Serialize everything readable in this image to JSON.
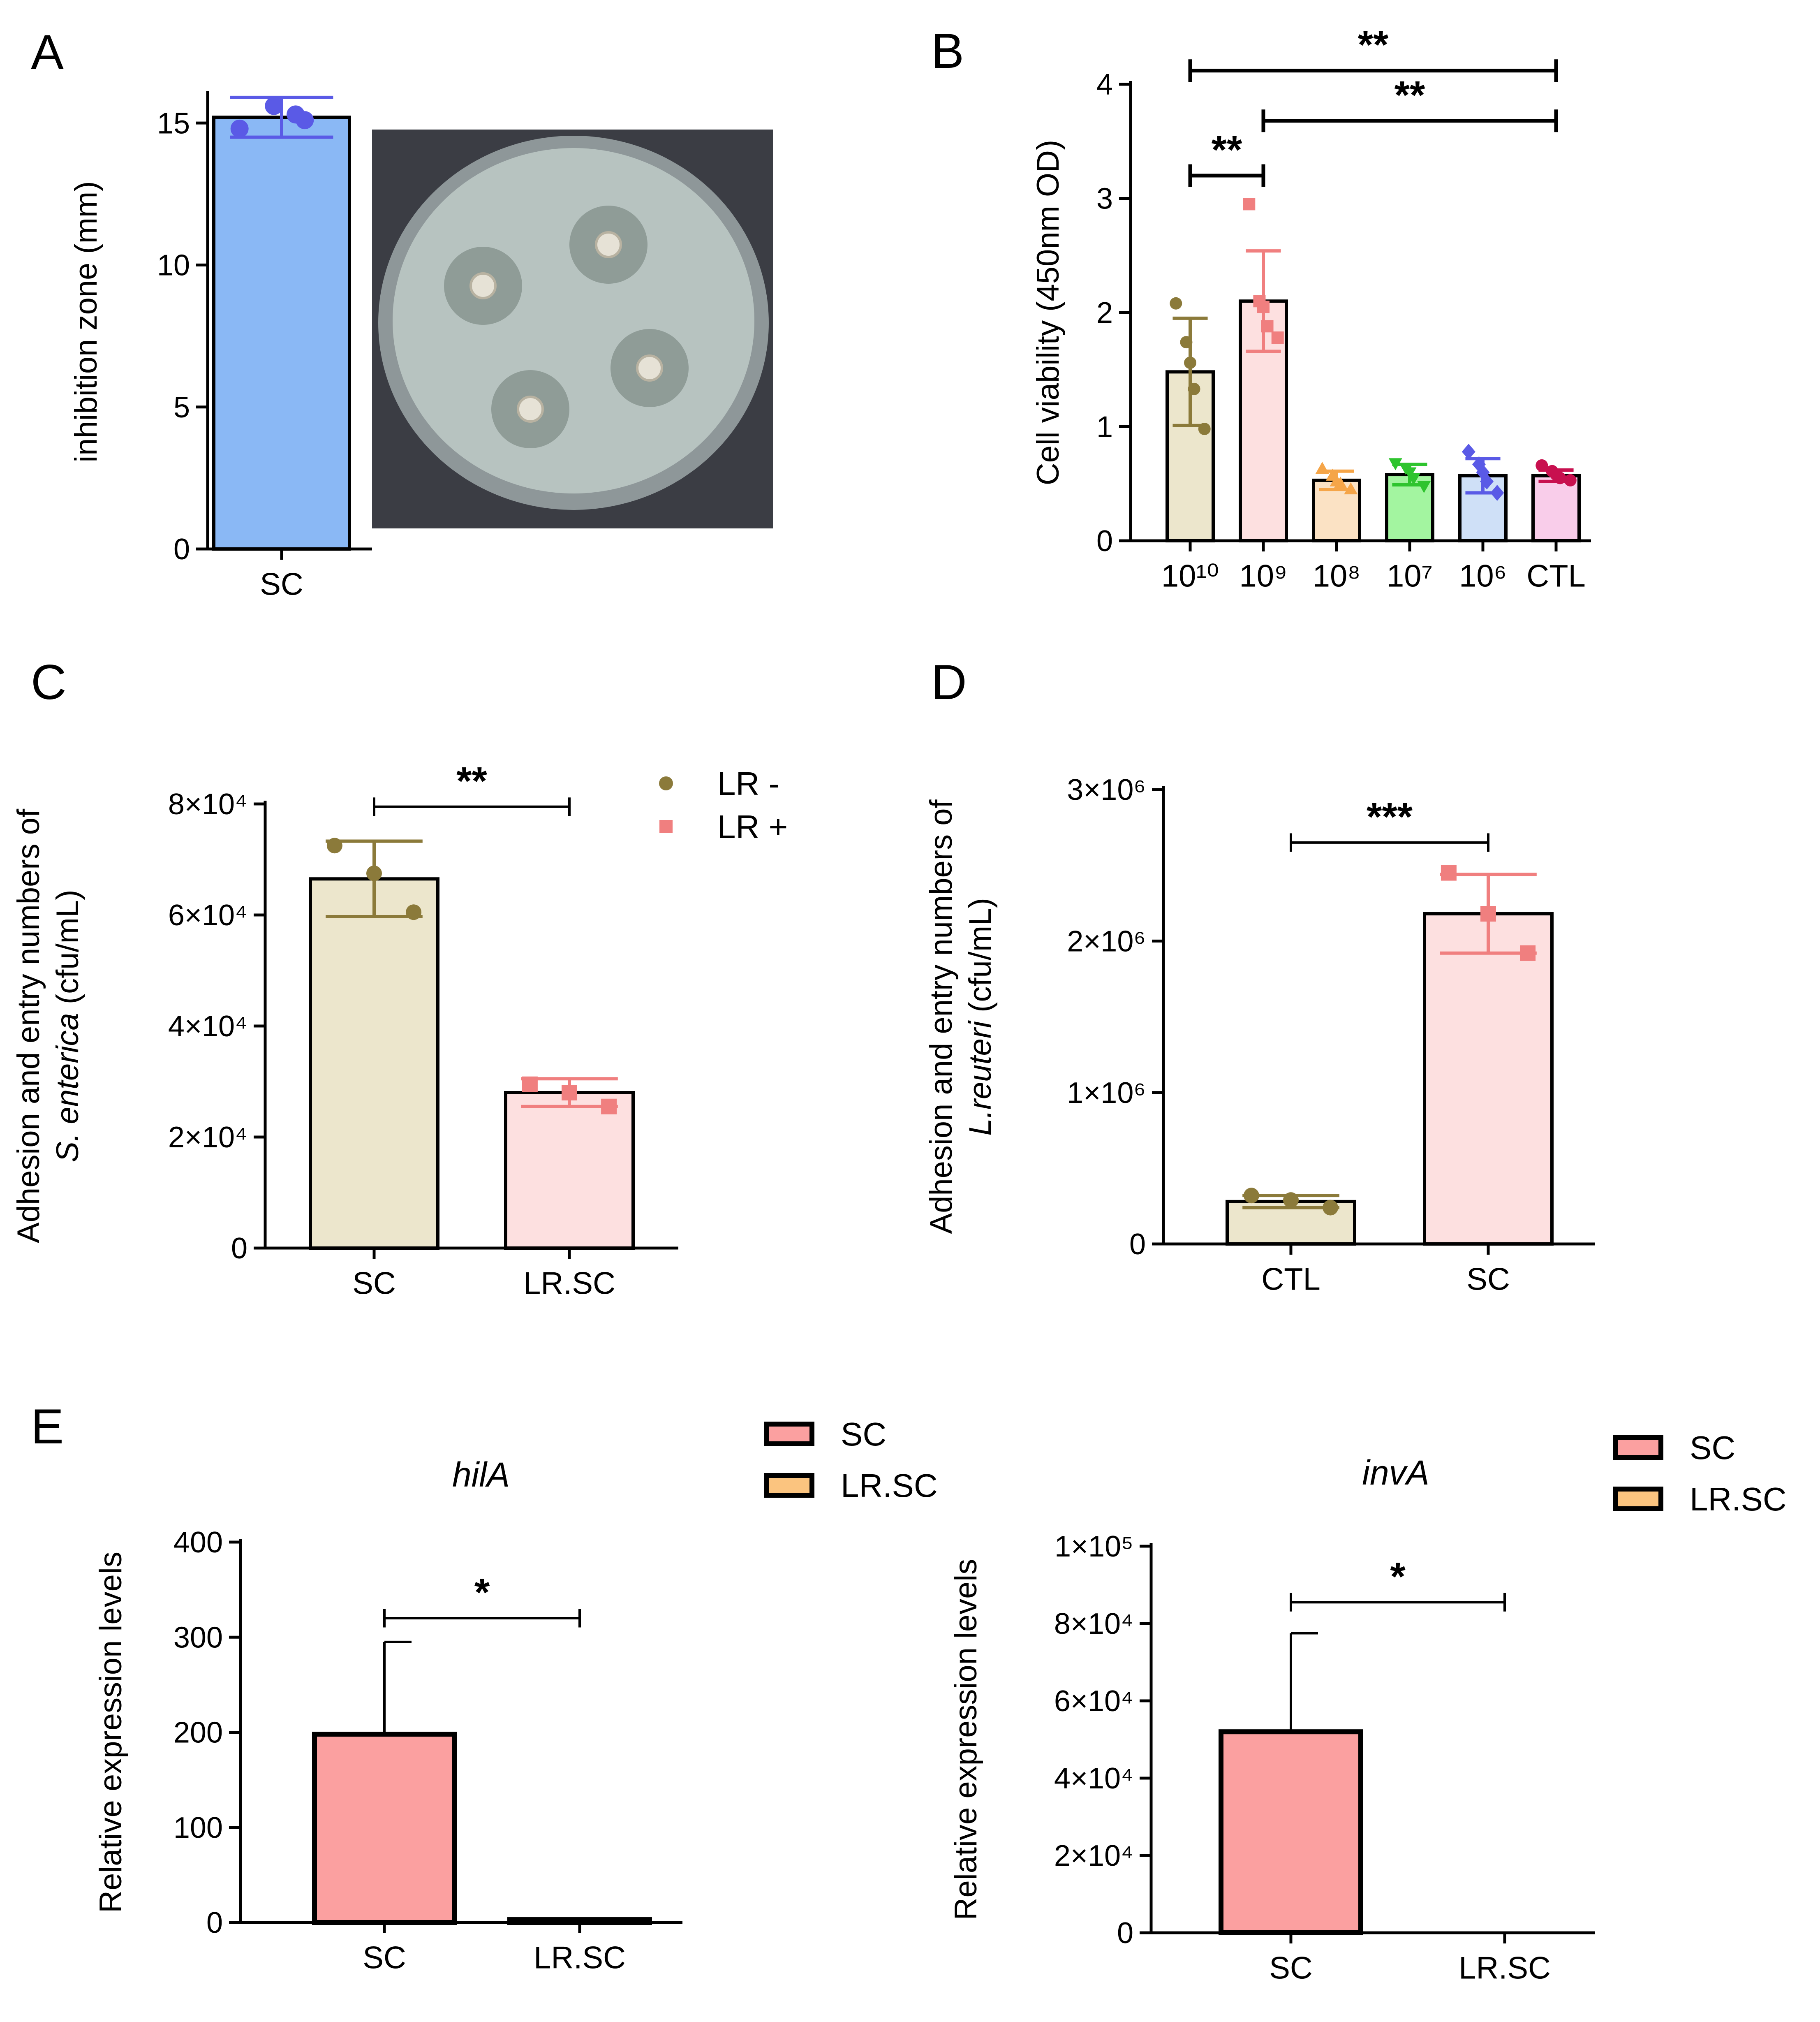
{
  "panels": {
    "A": {
      "letter": "A"
    },
    "B": {
      "letter": "B"
    },
    "C": {
      "letter": "C"
    },
    "D": {
      "letter": "D"
    },
    "E": {
      "letter": "E"
    }
  },
  "chart_data": [
    {
      "id": "A",
      "type": "bar",
      "title": "",
      "categories": [
        "SC"
      ],
      "values": [
        15.2
      ],
      "errors": [
        0.7
      ],
      "points": [
        [
          14.8,
          15.6,
          15.3,
          15.1
        ]
      ],
      "xlabel": "",
      "ylabel": "inhibition zone (mm)",
      "ylim": [
        0,
        16
      ],
      "yticks": [
        "0",
        "5",
        "10",
        "15"
      ],
      "colors": {
        "bar": "#8ab8f5",
        "points": "#5a5ae6"
      },
      "photo_alt": "agar plate with four inhibition zones"
    },
    {
      "id": "B",
      "type": "bar",
      "title": "",
      "categories": [
        "10¹⁰",
        "10⁹",
        "10⁸",
        "10⁷",
        "10⁶",
        "CTL"
      ],
      "values": [
        1.48,
        2.1,
        0.53,
        0.58,
        0.57,
        0.57
      ],
      "errors": [
        0.47,
        0.44,
        0.08,
        0.09,
        0.15,
        0.05
      ],
      "points": [
        [
          2.08,
          1.74,
          1.56,
          1.33,
          0.98
        ],
        [
          2.95,
          2.1,
          2.05,
          1.88,
          1.78
        ],
        [
          0.63,
          0.57,
          0.52,
          0.5,
          0.45
        ],
        [
          0.68,
          0.64,
          0.6,
          0.55,
          0.48
        ],
        [
          0.78,
          0.67,
          0.6,
          0.52,
          0.42
        ],
        [
          0.66,
          0.61,
          0.58,
          0.55,
          0.53
        ]
      ],
      "markers": [
        "circle",
        "square",
        "triangle",
        "triangle-down",
        "diamond",
        "circle"
      ],
      "xlabel": "",
      "ylabel": "Cell viability (450nm OD)",
      "ylim": [
        0,
        4
      ],
      "yticks": [
        "0",
        "1",
        "2",
        "3",
        "4"
      ],
      "colors": {
        "bars": [
          "#ece6cc",
          "#fde0e0",
          "#fbe2c4",
          "#a3f5a0",
          "#cfe0f7",
          "#f9cdea"
        ],
        "points": [
          "#8b7a3a",
          "#f07f7f",
          "#f5a548",
          "#2ec42e",
          "#5a5ae6",
          "#c8104f"
        ]
      },
      "significance": [
        {
          "from": 0,
          "to": 5,
          "label": "**",
          "y": 4.12
        },
        {
          "from": 1,
          "to": 5,
          "label": "**",
          "y": 3.68
        },
        {
          "from": 0,
          "to": 1,
          "label": "**",
          "y": 3.2
        }
      ]
    },
    {
      "id": "C",
      "type": "bar",
      "title": "",
      "categories": [
        "SC",
        "LR.SC"
      ],
      "values": [
        66500,
        28000
      ],
      "errors": [
        6800,
        2500
      ],
      "points": [
        [
          72500,
          67500,
          60500
        ],
        [
          29500,
          28000,
          25500
        ]
      ],
      "markers": [
        "circle",
        "square"
      ],
      "xlabel": "",
      "ylabel_line1": "Adhesion  and entry  numbers of",
      "ylabel_italic": "S. enterica",
      "ylabel_rest": " (cfu/mL)",
      "ylim": [
        0,
        80000
      ],
      "yticks": [
        "0",
        "2×10⁴",
        "4×10⁴",
        "6×10⁴",
        "8×10⁴"
      ],
      "legend": [
        {
          "label": "LR -",
          "color": "#8b7a3a"
        },
        {
          "label": "LR +",
          "color": "#f07f7f"
        }
      ],
      "colors": {
        "bars": [
          "#ece6cc",
          "#fde0e0"
        ],
        "points": [
          "#8b7a3a",
          "#f07f7f"
        ]
      },
      "significance": [
        {
          "from": 0,
          "to": 1,
          "label": "**",
          "y": 79500
        }
      ]
    },
    {
      "id": "D",
      "type": "bar",
      "title": "",
      "categories": [
        "CTL",
        "SC"
      ],
      "values": [
        280000,
        2180000
      ],
      "errors": [
        40000,
        260000
      ],
      "points": [
        [
          320000,
          290000,
          240000
        ],
        [
          2450000,
          2180000,
          1920000
        ]
      ],
      "markers": [
        "circle",
        "square"
      ],
      "xlabel": "",
      "ylabel_line1": "Adhesion and entry numbers of",
      "ylabel_italic": "L.reuteri",
      "ylabel_rest": " (cfu/mL)",
      "ylim": [
        0,
        3000000
      ],
      "yticks": [
        "0",
        "1×10⁶",
        "2×10⁶",
        "3×10⁶"
      ],
      "colors": {
        "bars": [
          "#ece6cc",
          "#fde0e0"
        ],
        "points": [
          "#8b7a3a",
          "#f07f7f"
        ]
      },
      "significance": [
        {
          "from": 0,
          "to": 1,
          "label": "***",
          "y": 2650000
        }
      ]
    },
    {
      "id": "E1",
      "type": "bar",
      "title": "hilA",
      "categories": [
        "SC",
        "LR.SC"
      ],
      "values": [
        198,
        3
      ],
      "errors": [
        97,
        0
      ],
      "xlabel": "",
      "ylabel": "Relative expression levels",
      "ylim": [
        0,
        400
      ],
      "yticks": [
        "0",
        "100",
        "200",
        "300",
        "400"
      ],
      "legend": [
        {
          "label": "SC",
          "color": "#fba0a0"
        },
        {
          "label": "LR.SC",
          "color": "#fbc47f"
        }
      ],
      "colors": {
        "bars": [
          "#fba0a0",
          "#fbc47f"
        ]
      },
      "significance": [
        {
          "from": 0,
          "to": 1,
          "label": "*",
          "y": 320
        }
      ]
    },
    {
      "id": "E2",
      "type": "bar",
      "title": "invA",
      "categories": [
        "SC",
        "LR.SC"
      ],
      "values": [
        52000,
        0
      ],
      "errors": [
        25500,
        0
      ],
      "xlabel": "",
      "ylabel": "Relative expression levels",
      "ylim": [
        0,
        100000
      ],
      "yticks": [
        "0",
        "2×10⁴",
        "4×10⁴",
        "6×10⁴",
        "8×10⁴",
        "1×10⁵"
      ],
      "legend": [
        {
          "label": "SC",
          "color": "#fba0a0"
        },
        {
          "label": "LR.SC",
          "color": "#fbc47f"
        }
      ],
      "colors": {
        "bars": [
          "#fba0a0",
          "#fbc47f"
        ]
      },
      "significance": [
        {
          "from": 0,
          "to": 1,
          "label": "*",
          "y": 85500
        }
      ]
    }
  ]
}
